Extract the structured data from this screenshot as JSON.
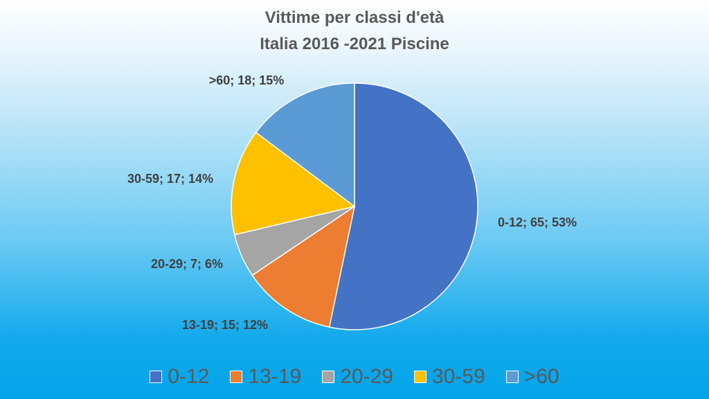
{
  "chart_data": {
    "type": "pie",
    "title": "Vittime per classi d'età",
    "subtitle": "Italia 2016 -2021 Piscine",
    "categories": [
      "0-12",
      "13-19",
      "20-29",
      "30-59",
      ">60"
    ],
    "values": [
      65,
      15,
      7,
      17,
      18
    ],
    "percentages": [
      "53%",
      "12%",
      "6%",
      "14%",
      "15%"
    ],
    "data_labels": [
      "0-12; 65; 53%",
      "13-19; 15; 12%",
      "20-29; 7; 6%",
      "30-59; 17; 14%",
      ">60; 18; 15%"
    ],
    "colors": [
      "#4472c4",
      "#ed7d31",
      "#a5a5a5",
      "#ffc000",
      "#5b9bd5"
    ],
    "legend_position": "bottom"
  }
}
